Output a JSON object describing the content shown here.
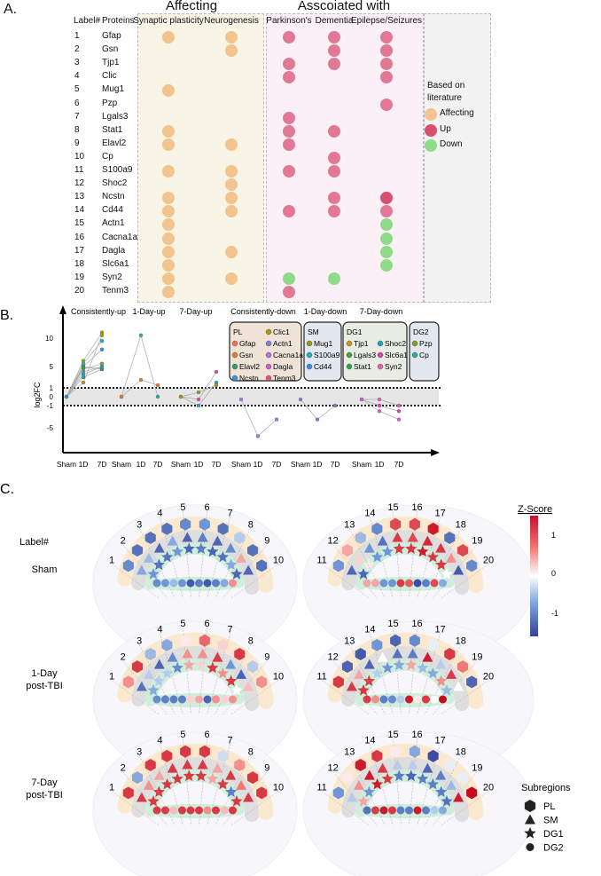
{
  "colors": {
    "affecting": "#f2c48f",
    "up": "#e07896",
    "up_strong": "#d8506e",
    "down": "#8edc8a",
    "bg_affecting": "#f8f5e6",
    "bg_assoc": "#fbf0f5",
    "bg_legend": "#f2f2f2"
  },
  "panel_a": {
    "letter": "A.",
    "group_affecting": "Affecting",
    "group_associated": "Asscoiated with",
    "col_label": "Label#",
    "col_proteins": "Proteins",
    "columns": [
      "Synaptic plasticity",
      "Neurogenesis",
      "Parkinson's",
      "Dementia",
      "Epilepse/Seizures"
    ],
    "rows": [
      {
        "label": "1",
        "protein": "Gfap",
        "marks": [
          "A",
          "A",
          "U",
          "U",
          "U"
        ]
      },
      {
        "label": "2",
        "protein": "Gsn",
        "marks": [
          "",
          "A",
          "",
          "U",
          "U"
        ]
      },
      {
        "label": "3",
        "protein": "Tjp1",
        "marks": [
          "",
          "",
          "U",
          "U",
          "U"
        ]
      },
      {
        "label": "4",
        "protein": "Clic",
        "marks": [
          "",
          "",
          "U",
          "",
          "U"
        ]
      },
      {
        "label": "5",
        "protein": "Mug1",
        "marks": [
          "A",
          "",
          "",
          "",
          ""
        ]
      },
      {
        "label": "6",
        "protein": "Pzp",
        "marks": [
          "",
          "",
          "",
          "",
          "U"
        ]
      },
      {
        "label": "7",
        "protein": "Lgals3",
        "marks": [
          "",
          "",
          "U",
          "",
          ""
        ]
      },
      {
        "label": "8",
        "protein": "Stat1",
        "marks": [
          "A",
          "",
          "U",
          "U",
          ""
        ]
      },
      {
        "label": "9",
        "protein": "Elavl2",
        "marks": [
          "A",
          "A",
          "U",
          "",
          ""
        ]
      },
      {
        "label": "10",
        "protein": "Cp",
        "marks": [
          "",
          "",
          "",
          "U",
          ""
        ]
      },
      {
        "label": "11",
        "protein": "S100a9",
        "marks": [
          "A",
          "A",
          "U",
          "U",
          ""
        ]
      },
      {
        "label": "12",
        "protein": "Shoc2",
        "marks": [
          "",
          "A",
          "",
          "",
          ""
        ]
      },
      {
        "label": "13",
        "protein": "Ncstn",
        "marks": [
          "A",
          "A",
          "",
          "U",
          "S"
        ]
      },
      {
        "label": "14",
        "protein": "Cd44",
        "marks": [
          "A",
          "A",
          "U",
          "U",
          "U"
        ]
      },
      {
        "label": "15",
        "protein": "Actn1",
        "marks": [
          "A",
          "",
          "",
          "",
          "D"
        ]
      },
      {
        "label": "16",
        "protein": "Cacna1a",
        "marks": [
          "A",
          "",
          "",
          "",
          "D"
        ]
      },
      {
        "label": "17",
        "protein": "Dagla",
        "marks": [
          "A",
          "A",
          "",
          "",
          "D"
        ]
      },
      {
        "label": "18",
        "protein": "Slc6a1",
        "marks": [
          "A",
          "",
          "",
          "",
          "D"
        ]
      },
      {
        "label": "19",
        "protein": "Syn2",
        "marks": [
          "A",
          "A",
          "D",
          "D",
          ""
        ]
      },
      {
        "label": "20",
        "protein": "Tenm3",
        "marks": [
          "A",
          "",
          "U",
          "",
          ""
        ]
      }
    ],
    "legend": {
      "title_1": "Based on",
      "title_2": "literature",
      "affecting": "Affecting",
      "up": "Up",
      "down": "Down"
    }
  },
  "chart_data": {
    "type": "line",
    "letter": "B.",
    "ylabel": "log2FC",
    "yticks": [
      10,
      5,
      1,
      0,
      -1,
      -5
    ],
    "threshold_lines": [
      1,
      -1
    ],
    "group_titles": [
      "Consistently-up",
      "1-Day-up",
      "7-Day-up",
      "Consistently-down",
      "1-Day-down",
      "7-Day-down"
    ],
    "x_tick_labels": [
      "Sham",
      "1D",
      "7D"
    ],
    "groups": [
      {
        "series": [
          {
            "color": "#9a9a10",
            "values": [
              0,
              6,
              11
            ]
          },
          {
            "color": "#b8900a",
            "values": [
              0,
              2,
              10.5
            ]
          },
          {
            "color": "#20b0b0",
            "values": [
              0,
              5.5,
              9.5
            ]
          },
          {
            "color": "#3a8ae0",
            "values": [
              0,
              5,
              8
            ]
          },
          {
            "color": "#2a9ad8",
            "values": [
              0,
              4,
              5
            ]
          },
          {
            "color": "#40a030",
            "values": [
              0,
              5,
              4.5
            ]
          },
          {
            "color": "#2a9d6a",
            "values": [
              0,
              3,
              4.5
            ]
          },
          {
            "color": "#80a020",
            "values": [
              0,
              4.5,
              5.5
            ]
          },
          {
            "color": "#30a050",
            "values": [
              0,
              4.8,
              4.6
            ]
          },
          {
            "color": "#20a0c0",
            "values": [
              0,
              3.5,
              5
            ]
          }
        ]
      },
      {
        "series": [
          {
            "color": "#20b0b0",
            "values": [
              0,
              10.5,
              0
            ]
          },
          {
            "color": "#e07b30",
            "values": [
              0,
              2.5,
              1.5
            ]
          }
        ]
      },
      {
        "series": [
          {
            "color": "#e0508a",
            "values": [
              0,
              -0.3,
              4
            ]
          },
          {
            "color": "#2a9ad8",
            "values": [
              0,
              -1,
              2
            ]
          },
          {
            "color": "#b8900a",
            "values": [
              0,
              0.5,
              1.5
            ]
          }
        ]
      },
      {
        "series": [
          {
            "color": "#b070e0",
            "values": [
              -0.3,
              -6.5,
              -3.5
            ]
          }
        ]
      },
      {
        "series": [
          {
            "color": "#8a7ad8",
            "values": [
              -0.3,
              -3.5,
              -1
            ]
          }
        ]
      },
      {
        "series": [
          {
            "color": "#e060b0",
            "values": [
              -0.3,
              -0.3,
              -1
            ]
          },
          {
            "color": "#e040b0",
            "values": [
              -0.3,
              -1,
              -2
            ]
          },
          {
            "color": "#d060d0",
            "values": [
              -0.3,
              -2,
              -3.5
            ]
          }
        ]
      }
    ],
    "legend": [
      {
        "name": "PL",
        "cols": [
          [
            {
              "name": "Gfap",
              "color": "#e8735a"
            },
            {
              "name": "Gsn",
              "color": "#e07b30"
            },
            {
              "name": "Elavl2",
              "color": "#2a9d6a"
            },
            {
              "name": "Ncstn",
              "color": "#2a9ad8"
            }
          ],
          [
            {
              "name": "Clic1",
              "color": "#b8900a"
            },
            {
              "name": "Actn1",
              "color": "#8a7ad8"
            },
            {
              "name": "Cacna1a",
              "color": "#b070e0"
            },
            {
              "name": "Dagla",
              "color": "#d060d0"
            },
            {
              "name": "Tenm3",
              "color": "#e0508a"
            }
          ]
        ]
      },
      {
        "name": "SM",
        "cols": [
          [
            {
              "name": "Mug1",
              "color": "#9a9a10"
            },
            {
              "name": "S100a9",
              "color": "#20b0b0"
            },
            {
              "name": "Cd44",
              "color": "#3a8ae0"
            }
          ]
        ]
      },
      {
        "name": "DG1",
        "cols": [
          [
            {
              "name": "Tjp1",
              "color": "#d09020"
            },
            {
              "name": "Lgals3",
              "color": "#40a030"
            },
            {
              "name": "Stat1",
              "color": "#30a050"
            }
          ],
          [
            {
              "name": "Shoc2",
              "color": "#20a0c0"
            },
            {
              "name": "Slc6a1",
              "color": "#e040b0"
            },
            {
              "name": "Syn2",
              "color": "#e060b0"
            }
          ]
        ]
      },
      {
        "name": "DG2",
        "cols": [
          [
            {
              "name": "Pzp",
              "color": "#80a020"
            },
            {
              "name": "Cp",
              "color": "#20b0a0"
            }
          ]
        ]
      }
    ]
  },
  "panel_c": {
    "letter": "C.",
    "label_header": "Label#",
    "colorbar": {
      "title": "Z-Score",
      "ticks": [
        "1",
        "0",
        "-1"
      ]
    },
    "subregions_title": "Subregions",
    "subregions": [
      "PL",
      "SM",
      "DG1",
      "DG2"
    ],
    "conditions": [
      {
        "name_1": "Sham",
        "name_2": "",
        "PL": [
          -0.7,
          -0.9,
          -0.9,
          -0.9,
          -0.7,
          -0.6,
          -0.9,
          -0.3,
          -0.9,
          -0.9,
          -0.6,
          0.4,
          -0.4,
          -0.7,
          0.9,
          0.9,
          1.2,
          -0.9,
          0.9,
          -0.7
        ],
        "SM": [
          -0.5,
          -0.4,
          -1,
          -0.5,
          -1,
          -0.8,
          -1,
          -0.7,
          0.4,
          -1,
          -1,
          0.2,
          -0.6,
          -0.9,
          1,
          0.9,
          1.1,
          1,
          0.5,
          -1.1
        ],
        "DG1": [
          -0.6,
          -0.9,
          -0.9,
          -0.6,
          -1,
          -0.8,
          -1,
          -0.9,
          -0.5,
          -1,
          -1,
          0.1,
          -0.6,
          -0.6,
          1,
          1,
          1.2,
          1,
          1,
          0
        ],
        "DG2": [
          -0.7,
          -0.6,
          -0.4,
          -0.6,
          -1.1,
          -0.8,
          -1.1,
          -0.8,
          -0.5,
          0.5,
          0.4,
          0.4,
          -0.6,
          -0.6,
          1,
          0.8,
          -1.2,
          -0.8,
          0.9,
          -0.5
        ]
      },
      {
        "name_1": "1-Day",
        "name_2": "post-TBI",
        "PL": [
          0.5,
          1,
          -0.4,
          -0.5,
          0.1,
          0.7,
          0.2,
          1,
          -0.3,
          0.5,
          1,
          -1,
          -1.1,
          -0.6,
          -1,
          -0.7,
          -0.1,
          1,
          0.6,
          -1
        ],
        "SM": [
          -0.9,
          -0.3,
          -1,
          -0.7,
          0.5,
          0.5,
          1,
          -0.6,
          -1,
          0.3,
          1,
          0.4,
          -1,
          0,
          -0.9,
          -0.8,
          1.2,
          -0.3,
          1,
          0
        ],
        "DG1": [
          -0.5,
          -0.3,
          -0.3,
          -0.7,
          0.4,
          0.2,
          1,
          0.5,
          1,
          0,
          1,
          1,
          -0.3,
          -0.6,
          -0.5,
          0.4,
          -0.4,
          -0.5,
          0.5,
          -0.4
        ],
        "DG2": [
          -0.7,
          -0.8,
          -0.8,
          -0.8,
          0.2,
          0.4,
          -1,
          0.5,
          0.2,
          0.5,
          1,
          0.5,
          -0.8,
          -0.7,
          -0.3,
          1.2,
          0.1,
          1,
          0,
          1.3
        ]
      },
      {
        "name_1": "7-Day",
        "name_2": "post-TBI",
        "PL": [
          1,
          -0.5,
          1,
          1,
          1,
          1,
          -0.2,
          0.5,
          1,
          1,
          -0.6,
          0.1,
          1.2,
          1,
          0.1,
          -0.5,
          -1.2,
          -0.1,
          -0.1,
          1.3
        ],
        "SM": [
          1,
          0.5,
          0.4,
          1,
          1,
          1,
          0.4,
          1,
          0.6,
          1,
          -0.3,
          0.5,
          1.2,
          1,
          -0.3,
          -0.3,
          -1,
          -0.8,
          -0.4,
          1.2
        ],
        "DG1": [
          1,
          1,
          1,
          1,
          1,
          1,
          0.4,
          1,
          -0.8,
          1,
          0.4,
          -0.6,
          1.2,
          1,
          -0.8,
          -1,
          -0.8,
          -0.8,
          -0.8,
          -0.9
        ],
        "DG2": [
          1,
          1,
          0.3,
          1,
          1,
          1,
          0.5,
          1,
          0.3,
          1,
          -0.9,
          1,
          1.2,
          1,
          -0.8,
          -0.8,
          1.2,
          -0.8,
          -0.3,
          -0.5
        ]
      }
    ]
  }
}
